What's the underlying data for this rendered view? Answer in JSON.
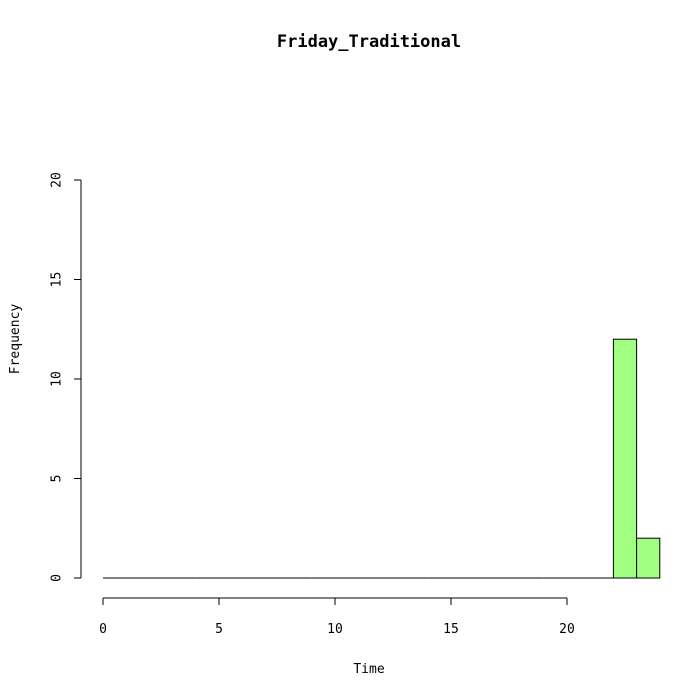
{
  "chart_data": {
    "type": "bar",
    "title": "Friday_Traditional",
    "xlabel": "Time",
    "ylabel": "Frequency",
    "xlim": [
      0,
      24
    ],
    "ylim": [
      0,
      20
    ],
    "x_ticks": [
      0,
      5,
      10,
      15,
      20
    ],
    "y_ticks": [
      0,
      5,
      10,
      15,
      20
    ],
    "bins": [
      {
        "start": 0,
        "end": 1,
        "count": 0
      },
      {
        "start": 1,
        "end": 2,
        "count": 0
      },
      {
        "start": 2,
        "end": 3,
        "count": 0
      },
      {
        "start": 3,
        "end": 4,
        "count": 0
      },
      {
        "start": 4,
        "end": 5,
        "count": 0
      },
      {
        "start": 5,
        "end": 6,
        "count": 0
      },
      {
        "start": 6,
        "end": 7,
        "count": 0
      },
      {
        "start": 7,
        "end": 8,
        "count": 0
      },
      {
        "start": 8,
        "end": 9,
        "count": 0
      },
      {
        "start": 9,
        "end": 10,
        "count": 0
      },
      {
        "start": 10,
        "end": 11,
        "count": 0
      },
      {
        "start": 11,
        "end": 12,
        "count": 0
      },
      {
        "start": 12,
        "end": 13,
        "count": 0
      },
      {
        "start": 13,
        "end": 14,
        "count": 0
      },
      {
        "start": 14,
        "end": 15,
        "count": 0
      },
      {
        "start": 15,
        "end": 16,
        "count": 0
      },
      {
        "start": 16,
        "end": 17,
        "count": 0
      },
      {
        "start": 17,
        "end": 18,
        "count": 0
      },
      {
        "start": 18,
        "end": 19,
        "count": 0
      },
      {
        "start": 19,
        "end": 20,
        "count": 0
      },
      {
        "start": 20,
        "end": 21,
        "count": 0
      },
      {
        "start": 21,
        "end": 22,
        "count": 0
      },
      {
        "start": 22,
        "end": 23,
        "count": 12
      },
      {
        "start": 23,
        "end": 24,
        "count": 2
      }
    ],
    "bar_color": "#a0ff80",
    "grid": false
  }
}
